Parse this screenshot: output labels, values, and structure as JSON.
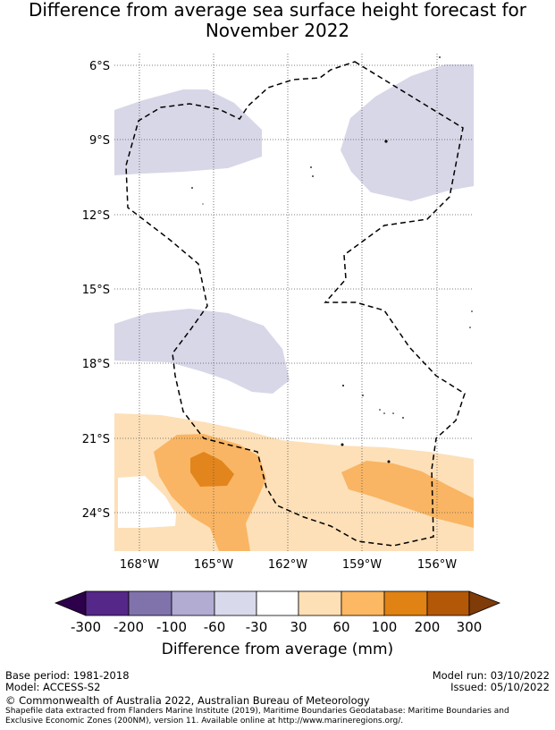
{
  "title_line1": "Difference from average sea surface height forecast for",
  "title_line2": "November 2022",
  "map": {
    "lat_ticks": [
      "6°S",
      "9°S",
      "12°S",
      "15°S",
      "18°S",
      "21°S",
      "24°S"
    ],
    "lon_ticks": [
      "168°W",
      "165°W",
      "162°W",
      "159°W",
      "156°W"
    ],
    "lon_range_deg": [
      -169,
      -154.5
    ],
    "lat_range_deg": [
      -25.5,
      -5.5
    ],
    "grid": true,
    "colors": {
      "neg_30_60": "#d7d7e8",
      "pos_30_60": "#fde0b8",
      "pos_60_100": "#f9b563",
      "pos_100_200": "#e2851c",
      "eez_boundary": "#000000"
    }
  },
  "colorbar": {
    "ticks": [
      "-300",
      "-200",
      "-100",
      "-60",
      "-30",
      "30",
      "60",
      "100",
      "200",
      "300"
    ],
    "under_color": "#2d004b",
    "over_color": "#7f3b08",
    "colors": [
      "#542788",
      "#8073ac",
      "#b2abd2",
      "#d8daeb",
      "#ffffff",
      "#fee0b6",
      "#fdb863",
      "#e08214",
      "#b35806"
    ],
    "label": "Difference from average (mm)"
  },
  "footer": {
    "base_period": "Base period: 1981-2018",
    "model": "Model: ACCESS-S2",
    "model_run": "Model run: 03/10/2022",
    "issued": "Issued: 05/10/2022",
    "copyright": "© Commonwealth of Australia 2022, Australian Bureau of Meteorology",
    "shapefile_line1": "Shapefile data extracted from Flanders Marine Institute (2019), Maritime Boundaries Geodatabase: Maritime Boundaries and",
    "shapefile_line2": "Exclusive Economic Zones (200NM), version 11. Available online at http://www.marineregions.org/."
  }
}
